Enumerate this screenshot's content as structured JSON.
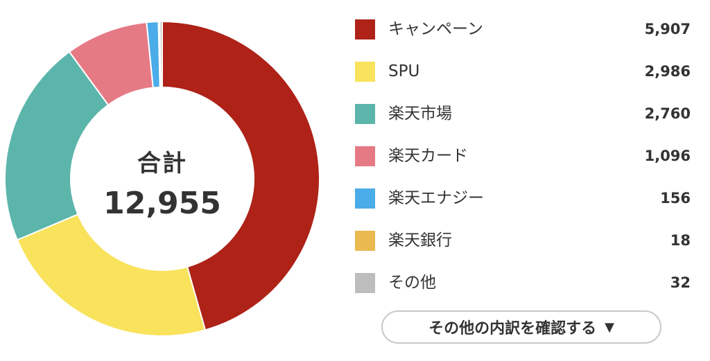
{
  "chart_data": {
    "type": "pie",
    "donut": true,
    "center": {
      "title": "合計",
      "value": "12,955"
    },
    "categories": [
      "キャンペーン",
      "SPU",
      "楽天市場",
      "楽天カード",
      "楽天エナジー",
      "楽天銀行",
      "その他"
    ],
    "values": [
      5907,
      2986,
      2760,
      1096,
      156,
      18,
      32
    ],
    "display_values": [
      "5,907",
      "2,986",
      "2,760",
      "1,096",
      "156",
      "18",
      "32"
    ],
    "colors": [
      "#ae2218",
      "#f9e25c",
      "#5bb5aa",
      "#e57a85",
      "#4aace8",
      "#eab94f",
      "#bdbdbd"
    ],
    "legend": "right"
  },
  "details_button": {
    "label": "その他の内訳を確認する",
    "caret": "▼",
    "icon": "caret-down-icon"
  }
}
